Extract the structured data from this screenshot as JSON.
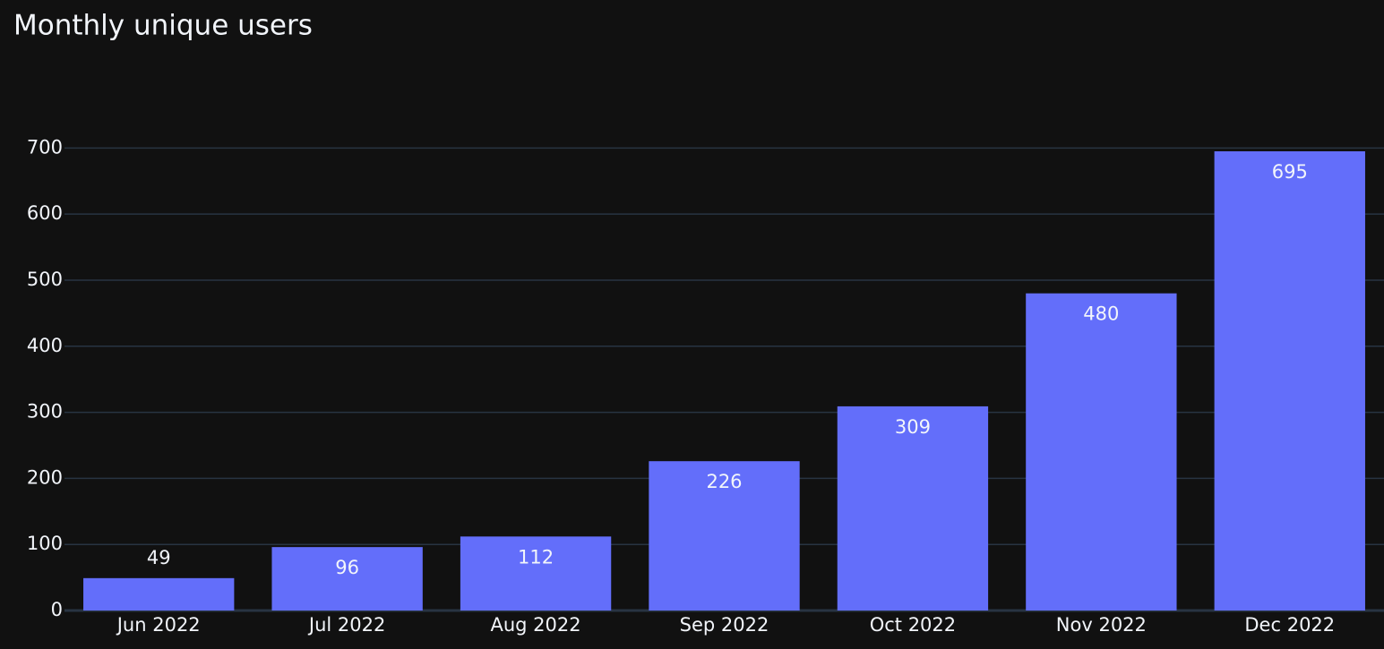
{
  "chart_data": {
    "type": "bar",
    "title": "Monthly unique users",
    "categories": [
      "Jun 2022",
      "Jul 2022",
      "Aug 2022",
      "Sep 2022",
      "Oct 2022",
      "Nov 2022",
      "Dec 2022"
    ],
    "values": [
      49,
      96,
      112,
      226,
      309,
      480,
      695
    ],
    "color": "#636efa",
    "ylim": [
      0,
      731.6
    ],
    "yticks": [
      0,
      100,
      200,
      300,
      400,
      500,
      600,
      700
    ],
    "grid": true
  }
}
